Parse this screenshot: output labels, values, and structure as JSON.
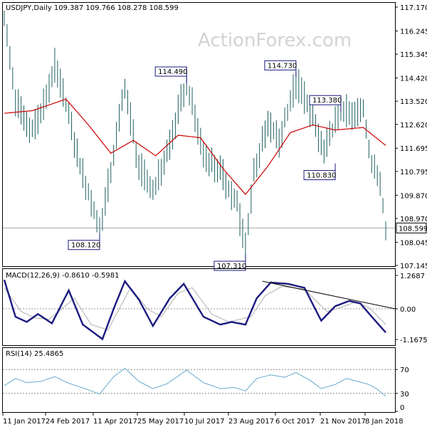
{
  "header": {
    "symbol_info": "USDJPY,Daily  109.387 109.766 108.278 108.599",
    "watermark": "ActionForex.com"
  },
  "colors": {
    "candle": "#1f5f5f",
    "ma": "#cc0000",
    "macd": "#1a1a80",
    "signal": "#b0b0b0",
    "rsi": "#66aacc",
    "reference": "#888888",
    "trendline": "#000000"
  },
  "chart_data": [
    {
      "type": "bar",
      "title": "",
      "ylim": [
        107.145,
        117.4
      ],
      "y_ticks": [
        {
          "label": "117.170",
          "value": 117.17
        },
        {
          "label": "116.245",
          "value": 116.245
        },
        {
          "label": "115.345",
          "value": 115.345
        },
        {
          "label": "114.420",
          "value": 114.42
        },
        {
          "label": "113.520",
          "value": 113.52
        },
        {
          "label": "112.620",
          "value": 112.62
        },
        {
          "label": "111.695",
          "value": 111.695
        },
        {
          "label": "110.795",
          "value": 110.795
        },
        {
          "label": "109.870",
          "value": 109.87
        },
        {
          "label": "108.970",
          "value": 108.97
        },
        {
          "label": "108.045",
          "value": 108.045
        },
        {
          "label": "107.145",
          "value": 107.145
        }
      ],
      "x_tick_labels": [
        "11 Jan 2017",
        "24 Feb 2017",
        "11 Apr 2017",
        "25 May 2017",
        "10 Jul 2017",
        "23 Aug 2017",
        "6 Oct 2017",
        "21 Nov 2017",
        "8 Jan 2018"
      ],
      "current_price": {
        "label": "108.599",
        "value": 108.599
      },
      "annotations": [
        {
          "label": "114.490",
          "value": 114.49,
          "bar": 65,
          "side": "above"
        },
        {
          "label": "114.730",
          "value": 114.73,
          "bar": 104,
          "side": "above"
        },
        {
          "label": "113.380",
          "value": 113.38,
          "bar": 120,
          "side": "above"
        },
        {
          "label": "110.830",
          "value": 110.83,
          "bar": 118,
          "side": "below"
        },
        {
          "label": "108.120",
          "value": 108.12,
          "bar": 34,
          "side": "below"
        },
        {
          "label": "107.310",
          "value": 107.31,
          "bar": 86,
          "side": "below"
        }
      ],
      "anchors": [
        [
          0,
          116.7
        ],
        [
          4,
          113.6
        ],
        [
          9,
          112.4
        ],
        [
          13,
          113.0
        ],
        [
          18,
          114.9
        ],
        [
          22,
          113.4
        ],
        [
          27,
          111.0
        ],
        [
          34,
          108.5
        ],
        [
          38,
          110.8
        ],
        [
          43,
          114.1
        ],
        [
          48,
          111.0
        ],
        [
          53,
          110.0
        ],
        [
          58,
          111.5
        ],
        [
          65,
          114.3
        ],
        [
          71,
          111.5
        ],
        [
          77,
          110.8
        ],
        [
          83,
          109.5
        ],
        [
          86,
          107.9
        ],
        [
          89,
          110.8
        ],
        [
          94,
          112.6
        ],
        [
          98,
          112.0
        ],
        [
          104,
          114.3
        ],
        [
          108,
          113.5
        ],
        [
          114,
          111.5
        ],
        [
          120,
          113.3
        ],
        [
          124,
          112.9
        ],
        [
          128,
          113.2
        ],
        [
          131,
          111.0
        ],
        [
          134,
          110.4
        ],
        [
          136,
          108.6
        ]
      ],
      "ma_anchors": [
        [
          0,
          113.05
        ],
        [
          10,
          113.15
        ],
        [
          22,
          113.6
        ],
        [
          30,
          112.6
        ],
        [
          38,
          111.5
        ],
        [
          46,
          112.0
        ],
        [
          54,
          111.4
        ],
        [
          62,
          112.2
        ],
        [
          70,
          112.1
        ],
        [
          78,
          110.9
        ],
        [
          86,
          109.9
        ],
        [
          94,
          111.0
        ],
        [
          102,
          112.3
        ],
        [
          110,
          112.6
        ],
        [
          118,
          112.4
        ],
        [
          128,
          112.5
        ],
        [
          136,
          111.8
        ]
      ]
    },
    {
      "type": "line",
      "title": "MACD(12,26,9) -0.8610 -0.5981",
      "ylim": [
        -1.3,
        1.35
      ],
      "y_ticks": [
        {
          "label": "1.2687",
          "value": 1.2687
        },
        {
          "label": "0.00",
          "value": 0.0
        },
        {
          "label": "-1.1675",
          "value": -1.1675
        }
      ],
      "series": [
        {
          "role": "macd",
          "anchors": [
            [
              0,
              1.1
            ],
            [
              4,
              -0.3
            ],
            [
              8,
              -0.5
            ],
            [
              12,
              -0.2
            ],
            [
              17,
              -0.55
            ],
            [
              23,
              0.7
            ],
            [
              28,
              -0.6
            ],
            [
              35,
              -1.15
            ],
            [
              39,
              0.0
            ],
            [
              43,
              1.05
            ],
            [
              48,
              0.35
            ],
            [
              53,
              -0.65
            ],
            [
              59,
              0.4
            ],
            [
              64,
              0.95
            ],
            [
              71,
              -0.3
            ],
            [
              77,
              -0.6
            ],
            [
              81,
              -0.5
            ],
            [
              86,
              -0.6
            ],
            [
              90,
              0.4
            ],
            [
              95,
              1.0
            ],
            [
              101,
              0.95
            ],
            [
              107,
              0.8
            ],
            [
              113,
              -0.45
            ],
            [
              118,
              0.1
            ],
            [
              123,
              0.3
            ],
            [
              127,
              0.2
            ],
            [
              131,
              -0.3
            ],
            [
              136,
              -0.9
            ]
          ]
        },
        {
          "role": "signal",
          "anchors": [
            [
              0,
              0.8
            ],
            [
              6,
              -0.1
            ],
            [
              11,
              -0.35
            ],
            [
              16,
              -0.4
            ],
            [
              25,
              0.4
            ],
            [
              31,
              -0.6
            ],
            [
              37,
              -0.8
            ],
            [
              45,
              0.8
            ],
            [
              51,
              0.0
            ],
            [
              56,
              -0.3
            ],
            [
              62,
              0.6
            ],
            [
              67,
              0.8
            ],
            [
              74,
              -0.2
            ],
            [
              80,
              -0.5
            ],
            [
              88,
              -0.3
            ],
            [
              93,
              0.5
            ],
            [
              99,
              0.85
            ],
            [
              107,
              0.75
            ],
            [
              115,
              -0.1
            ],
            [
              120,
              0.05
            ],
            [
              125,
              0.25
            ],
            [
              130,
              0.05
            ],
            [
              136,
              -0.6
            ]
          ]
        }
      ],
      "trendline": {
        "start": [
          92,
          1.05
        ],
        "end": [
          136,
          0.0
        ]
      }
    },
    {
      "type": "line",
      "title": "RSI(14) 25.4865",
      "ylim": [
        0,
        100
      ],
      "y_ticks": [
        {
          "label": "70",
          "value": 70
        },
        {
          "label": "30",
          "value": 30
        },
        {
          "label": "0",
          "value": 0
        }
      ],
      "reference_lines": [
        70,
        30
      ],
      "series": [
        {
          "role": "rsi",
          "anchors": [
            [
              0,
              43
            ],
            [
              4,
              55
            ],
            [
              8,
              48
            ],
            [
              13,
              50
            ],
            [
              18,
              58
            ],
            [
              23,
              47
            ],
            [
              30,
              36
            ],
            [
              34,
              29
            ],
            [
              39,
              58
            ],
            [
              43,
              72
            ],
            [
              48,
              50
            ],
            [
              53,
              38
            ],
            [
              58,
              46
            ],
            [
              65,
              69
            ],
            [
              71,
              48
            ],
            [
              77,
              38
            ],
            [
              82,
              40
            ],
            [
              86,
              34
            ],
            [
              90,
              55
            ],
            [
              95,
              61
            ],
            [
              100,
              57
            ],
            [
              104,
              65
            ],
            [
              109,
              52
            ],
            [
              113,
              38
            ],
            [
              118,
              45
            ],
            [
              122,
              55
            ],
            [
              126,
              50
            ],
            [
              130,
              45
            ],
            [
              133,
              37
            ],
            [
              136,
              25.5
            ]
          ]
        }
      ]
    }
  ]
}
